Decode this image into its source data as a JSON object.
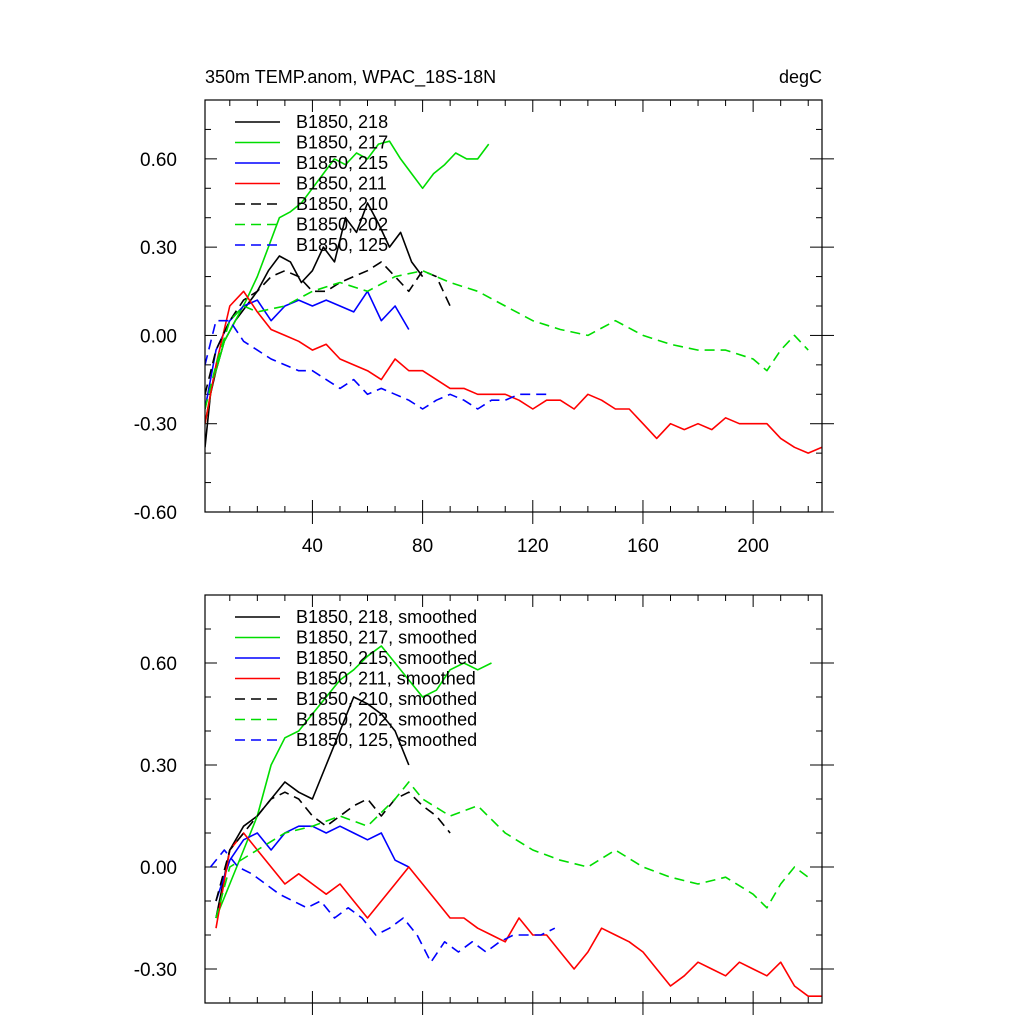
{
  "chart_data": [
    {
      "type": "line",
      "title": "350m TEMP.anom, WPAC_18S-18N",
      "units": "degC",
      "xlabel": "",
      "ylabel": "",
      "xlim": [
        1,
        225
      ],
      "ylim": [
        -0.6,
        0.8
      ],
      "xticks": [
        40,
        80,
        120,
        160,
        200
      ],
      "yticks": [
        -0.6,
        -0.3,
        0.0,
        0.3,
        0.6
      ],
      "xtick_labels": [
        "40",
        "80",
        "120",
        "160",
        "200"
      ],
      "ytick_labels": [
        "-0.60",
        "-0.30",
        "0.00",
        "0.30",
        "0.60"
      ],
      "grid": false,
      "legend_position": "top-left",
      "series": [
        {
          "name": "B1850, 218",
          "color": "#000000",
          "dash": "solid",
          "x": [
            1,
            3,
            5,
            8,
            12,
            16,
            20,
            24,
            28,
            32,
            36,
            40,
            44,
            48,
            52,
            56,
            60,
            64,
            68,
            72,
            76,
            80
          ],
          "y": [
            -0.38,
            -0.2,
            -0.12,
            -0.02,
            0.05,
            0.1,
            0.15,
            0.22,
            0.27,
            0.25,
            0.18,
            0.22,
            0.3,
            0.25,
            0.4,
            0.35,
            0.45,
            0.38,
            0.3,
            0.35,
            0.25,
            0.2
          ]
        },
        {
          "name": "B1850, 217",
          "color": "#00dd00",
          "dash": "solid",
          "x": [
            1,
            4,
            8,
            12,
            16,
            20,
            24,
            28,
            32,
            36,
            40,
            44,
            48,
            52,
            56,
            60,
            64,
            68,
            72,
            76,
            80,
            84,
            88,
            92,
            96,
            100,
            104
          ],
          "y": [
            -0.3,
            -0.15,
            -0.02,
            0.05,
            0.12,
            0.2,
            0.3,
            0.4,
            0.42,
            0.45,
            0.5,
            0.55,
            0.6,
            0.58,
            0.62,
            0.6,
            0.65,
            0.66,
            0.6,
            0.55,
            0.5,
            0.55,
            0.58,
            0.62,
            0.6,
            0.6,
            0.65
          ]
        },
        {
          "name": "B1850, 215",
          "color": "#0000ff",
          "dash": "solid",
          "x": [
            1,
            5,
            10,
            15,
            20,
            25,
            30,
            35,
            40,
            45,
            50,
            55,
            60,
            65,
            70,
            75
          ],
          "y": [
            -0.25,
            -0.05,
            0.05,
            0.1,
            0.12,
            0.05,
            0.1,
            0.12,
            0.1,
            0.12,
            0.1,
            0.08,
            0.15,
            0.05,
            0.1,
            0.02
          ]
        },
        {
          "name": "B1850, 211",
          "color": "#ff0000",
          "dash": "solid",
          "x": [
            1,
            5,
            10,
            15,
            20,
            25,
            30,
            35,
            40,
            45,
            50,
            55,
            60,
            65,
            70,
            75,
            80,
            85,
            90,
            95,
            100,
            105,
            110,
            115,
            120,
            125,
            130,
            135,
            140,
            145,
            150,
            155,
            160,
            165,
            170,
            175,
            180,
            185,
            190,
            195,
            200,
            205,
            210,
            215,
            220,
            225
          ],
          "y": [
            -0.3,
            -0.1,
            0.1,
            0.15,
            0.08,
            0.02,
            0.0,
            -0.02,
            -0.05,
            -0.03,
            -0.08,
            -0.1,
            -0.12,
            -0.15,
            -0.08,
            -0.12,
            -0.12,
            -0.15,
            -0.18,
            -0.18,
            -0.2,
            -0.2,
            -0.2,
            -0.22,
            -0.25,
            -0.22,
            -0.22,
            -0.25,
            -0.2,
            -0.22,
            -0.25,
            -0.25,
            -0.3,
            -0.35,
            -0.3,
            -0.32,
            -0.3,
            -0.32,
            -0.28,
            -0.3,
            -0.3,
            -0.3,
            -0.35,
            -0.38,
            -0.4,
            -0.38
          ]
        },
        {
          "name": "B1850, 210",
          "color": "#000000",
          "dash": "dashed",
          "x": [
            1,
            5,
            10,
            15,
            20,
            25,
            30,
            35,
            40,
            45,
            50,
            55,
            60,
            65,
            70,
            75,
            80,
            85,
            90
          ],
          "y": [
            -0.2,
            -0.05,
            0.05,
            0.12,
            0.15,
            0.2,
            0.22,
            0.2,
            0.15,
            0.15,
            0.18,
            0.2,
            0.22,
            0.25,
            0.2,
            0.15,
            0.22,
            0.2,
            0.1
          ]
        },
        {
          "name": "B1850, 202",
          "color": "#00dd00",
          "dash": "dashed",
          "x": [
            1,
            5,
            10,
            15,
            20,
            30,
            40,
            50,
            60,
            70,
            80,
            90,
            100,
            110,
            120,
            130,
            140,
            150,
            160,
            170,
            180,
            190,
            200,
            205,
            210,
            215,
            220
          ],
          "y": [
            -0.25,
            -0.1,
            0.05,
            0.1,
            0.08,
            0.1,
            0.15,
            0.18,
            0.15,
            0.2,
            0.22,
            0.18,
            0.15,
            0.1,
            0.05,
            0.02,
            0.0,
            0.05,
            0.0,
            -0.03,
            -0.05,
            -0.05,
            -0.08,
            -0.12,
            -0.05,
            0.0,
            -0.05
          ]
        },
        {
          "name": "B1850, 125",
          "color": "#0000ff",
          "dash": "dashed",
          "x": [
            1,
            5,
            10,
            15,
            20,
            25,
            30,
            35,
            40,
            45,
            50,
            55,
            60,
            65,
            70,
            75,
            80,
            85,
            90,
            95,
            100,
            105,
            110,
            115,
            120,
            125
          ],
          "y": [
            -0.1,
            0.05,
            0.05,
            -0.02,
            -0.05,
            -0.08,
            -0.1,
            -0.12,
            -0.12,
            -0.15,
            -0.18,
            -0.15,
            -0.2,
            -0.18,
            -0.2,
            -0.22,
            -0.25,
            -0.22,
            -0.2,
            -0.22,
            -0.25,
            -0.22,
            -0.22,
            -0.2,
            -0.2,
            -0.2
          ]
        }
      ]
    },
    {
      "type": "line",
      "title": "",
      "units": "",
      "xlabel": "",
      "ylabel": "",
      "xlim": [
        1,
        225
      ],
      "ylim": [
        -0.4,
        0.8
      ],
      "xticks": [
        40,
        80,
        120,
        160,
        200
      ],
      "yticks": [
        -0.3,
        0.0,
        0.3,
        0.6
      ],
      "xtick_labels": [
        "",
        "",
        "",
        "",
        ""
      ],
      "ytick_labels": [
        "-0.30",
        "0.00",
        "0.30",
        "0.60"
      ],
      "grid": false,
      "legend_position": "top-left",
      "series": [
        {
          "name": "B1850, 218, smoothed",
          "color": "#000000",
          "dash": "solid",
          "x": [
            5,
            10,
            15,
            20,
            25,
            30,
            35,
            40,
            45,
            50,
            55,
            60,
            65,
            70,
            75
          ],
          "y": [
            -0.15,
            0.05,
            0.12,
            0.15,
            0.2,
            0.25,
            0.22,
            0.2,
            0.3,
            0.4,
            0.5,
            0.48,
            0.45,
            0.4,
            0.3
          ]
        },
        {
          "name": "B1850, 217, smoothed",
          "color": "#00dd00",
          "dash": "solid",
          "x": [
            5,
            10,
            15,
            20,
            25,
            30,
            35,
            40,
            45,
            50,
            55,
            60,
            65,
            70,
            75,
            80,
            85,
            90,
            95,
            100,
            105
          ],
          "y": [
            -0.15,
            -0.05,
            0.05,
            0.15,
            0.3,
            0.38,
            0.4,
            0.45,
            0.5,
            0.55,
            0.58,
            0.62,
            0.65,
            0.6,
            0.55,
            0.5,
            0.52,
            0.58,
            0.6,
            0.58,
            0.6
          ]
        },
        {
          "name": "B1850, 215, smoothed",
          "color": "#0000ff",
          "dash": "solid",
          "x": [
            5,
            10,
            15,
            20,
            25,
            30,
            35,
            40,
            45,
            50,
            55,
            60,
            65,
            70,
            75
          ],
          "y": [
            -0.1,
            0.02,
            0.08,
            0.1,
            0.05,
            0.1,
            0.12,
            0.12,
            0.1,
            0.12,
            0.1,
            0.08,
            0.1,
            0.02,
            0.0
          ]
        },
        {
          "name": "B1850, 211, smoothed",
          "color": "#ff0000",
          "dash": "solid",
          "x": [
            5,
            10,
            15,
            20,
            25,
            30,
            35,
            40,
            45,
            50,
            55,
            60,
            65,
            70,
            75,
            80,
            85,
            90,
            95,
            100,
            105,
            110,
            115,
            120,
            125,
            130,
            135,
            140,
            145,
            150,
            155,
            160,
            165,
            170,
            175,
            180,
            185,
            190,
            195,
            200,
            205,
            210,
            215,
            220,
            225
          ],
          "y": [
            -0.18,
            0.05,
            0.1,
            0.05,
            0.0,
            -0.05,
            -0.02,
            -0.05,
            -0.08,
            -0.05,
            -0.1,
            -0.15,
            -0.1,
            -0.05,
            0.0,
            -0.05,
            -0.1,
            -0.15,
            -0.15,
            -0.18,
            -0.2,
            -0.22,
            -0.15,
            -0.2,
            -0.2,
            -0.25,
            -0.3,
            -0.25,
            -0.18,
            -0.2,
            -0.22,
            -0.25,
            -0.3,
            -0.35,
            -0.32,
            -0.28,
            -0.3,
            -0.32,
            -0.28,
            -0.3,
            -0.32,
            -0.28,
            -0.35,
            -0.38,
            -0.38
          ]
        },
        {
          "name": "B1850, 210, smoothed",
          "color": "#000000",
          "dash": "dashed",
          "x": [
            5,
            10,
            15,
            20,
            25,
            30,
            35,
            40,
            45,
            50,
            55,
            60,
            65,
            70,
            75,
            80,
            85,
            90
          ],
          "y": [
            -0.1,
            0.05,
            0.1,
            0.15,
            0.2,
            0.22,
            0.2,
            0.15,
            0.12,
            0.15,
            0.18,
            0.2,
            0.15,
            0.2,
            0.22,
            0.18,
            0.15,
            0.1
          ]
        },
        {
          "name": "B1850, 202, smoothed",
          "color": "#00dd00",
          "dash": "dashed",
          "x": [
            5,
            10,
            20,
            30,
            40,
            50,
            60,
            70,
            75,
            80,
            90,
            100,
            110,
            120,
            130,
            140,
            150,
            160,
            170,
            180,
            190,
            200,
            205,
            210,
            215,
            220
          ],
          "y": [
            -0.15,
            0.0,
            0.05,
            0.1,
            0.12,
            0.15,
            0.12,
            0.2,
            0.25,
            0.2,
            0.15,
            0.18,
            0.1,
            0.05,
            0.02,
            0.0,
            0.05,
            0.0,
            -0.03,
            -0.05,
            -0.03,
            -0.08,
            -0.12,
            -0.05,
            0.0,
            -0.03
          ]
        },
        {
          "name": "B1850, 125, smoothed",
          "color": "#0000ff",
          "dash": "dashed",
          "x": [
            3,
            8,
            13,
            18,
            23,
            28,
            33,
            38,
            43,
            48,
            53,
            58,
            63,
            68,
            73,
            78,
            83,
            88,
            93,
            98,
            103,
            108,
            113,
            118,
            123,
            128
          ],
          "y": [
            0.0,
            0.05,
            0.0,
            -0.02,
            -0.05,
            -0.08,
            -0.1,
            -0.12,
            -0.1,
            -0.15,
            -0.12,
            -0.15,
            -0.2,
            -0.18,
            -0.15,
            -0.2,
            -0.28,
            -0.22,
            -0.25,
            -0.22,
            -0.25,
            -0.22,
            -0.2,
            -0.2,
            -0.2,
            -0.18
          ]
        }
      ]
    }
  ]
}
